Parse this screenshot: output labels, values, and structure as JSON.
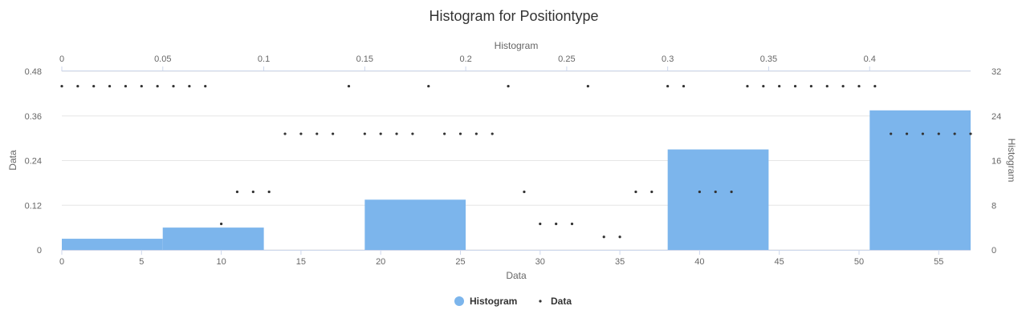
{
  "chart_data": {
    "type": "histogram",
    "title": "Histogram for Positiontype",
    "legend": {
      "placement": "bottom-center",
      "items": [
        {
          "key": "histogram",
          "label": "Histogram",
          "color": "#7cb5ec",
          "shape": "circle"
        },
        {
          "key": "data",
          "label": "Data",
          "color": "#333333",
          "shape": "dot"
        }
      ]
    },
    "axes": {
      "x_bottom": {
        "title": "Data",
        "min": 0,
        "max": 57,
        "ticks": [
          0,
          5,
          10,
          15,
          20,
          25,
          30,
          35,
          40,
          45,
          50,
          55
        ]
      },
      "x_top": {
        "title": "Histogram",
        "min": 0,
        "max": 0.45,
        "ticks": [
          "0",
          "0.05",
          "0.1",
          "0.15",
          "0.2",
          "0.25",
          "0.3",
          "0.35",
          "0.4"
        ]
      },
      "y_left": {
        "title": "Data",
        "min": 0,
        "max": 0.48,
        "ticks": [
          "0",
          "0.12",
          "0.24",
          "0.36",
          "0.48"
        ]
      },
      "y_right": {
        "title": "Histogram",
        "min": 0,
        "max": 32,
        "ticks": [
          "0",
          "8",
          "16",
          "24",
          "32"
        ]
      }
    },
    "grid": true,
    "histogram": {
      "name": "Histogram",
      "bins": [
        {
          "x0": 0,
          "x1": 6.33,
          "count": 2
        },
        {
          "x0": 6.33,
          "x1": 12.67,
          "count": 4
        },
        {
          "x0": 12.67,
          "x1": 19,
          "count": 0
        },
        {
          "x0": 19,
          "x1": 25.33,
          "count": 9
        },
        {
          "x0": 25.33,
          "x1": 31.67,
          "count": 0
        },
        {
          "x0": 31.67,
          "x1": 38,
          "count": 0
        },
        {
          "x0": 38,
          "x1": 44.33,
          "count": 18
        },
        {
          "x0": 44.33,
          "x1": 50.67,
          "count": 0
        },
        {
          "x0": 50.67,
          "x1": 57,
          "count": 25
        }
      ]
    },
    "data_series": {
      "name": "Data",
      "values": [
        0.44,
        0.44,
        0.44,
        0.44,
        0.44,
        0.44,
        0.44,
        0.44,
        0.44,
        0.44,
        0.07,
        0.156,
        0.156,
        0.156,
        0.312,
        0.312,
        0.312,
        0.312,
        0.44,
        0.312,
        0.312,
        0.312,
        0.312,
        0.44,
        0.312,
        0.312,
        0.312,
        0.312,
        0.44,
        0.156,
        0.07,
        0.07,
        0.07,
        0.44,
        0.035,
        0.035,
        0.156,
        0.156,
        0.44,
        0.44,
        0.156,
        0.156,
        0.156,
        0.44,
        0.44,
        0.44,
        0.44,
        0.44,
        0.44,
        0.44,
        0.44,
        0.44,
        0.312,
        0.312,
        0.312,
        0.312,
        0.312,
        0.312
      ]
    }
  }
}
